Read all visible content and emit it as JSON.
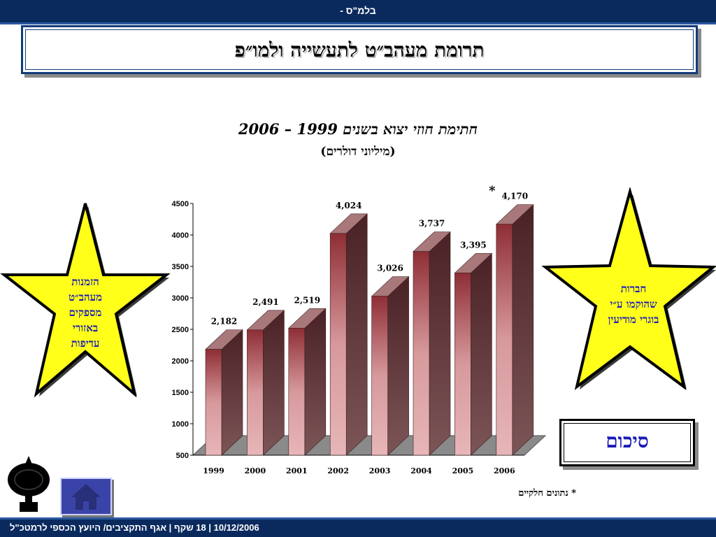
{
  "header": {
    "label": "בלמ\"ס -"
  },
  "title": "תרומת מעהב״ט לתעשייה ולמו״פ",
  "left_star": {
    "lines": [
      "הזמנות",
      "מעהב״ט",
      "מספקים",
      "באזורי",
      "עדיפות"
    ]
  },
  "right_star": {
    "lines": [
      "חברות",
      "שהוקמו ע״י",
      "בוגרי מודיעין"
    ]
  },
  "summary_button": {
    "label": "סיכום"
  },
  "footnote": "* נתונים חלקיים",
  "footer": {
    "label": "10/12/2006 | 18 שקף | אגף התקציבים/ היועץ הכספי לרמטכ\"ל"
  },
  "colors": {
    "bar_front": "#c98e90",
    "bar_side": "#5a3436",
    "bar_top": "#a9787a",
    "floor": "#8a8a8a",
    "star": "#ffff1a"
  },
  "chart_data": {
    "type": "bar",
    "title": "חתימת חוזי יצוא בשנים 1999 – 2006",
    "subtitle": "(מיליוני דולרים)",
    "categories": [
      "1999",
      "2000",
      "2001",
      "2002",
      "2003",
      "2004",
      "2005",
      "2006"
    ],
    "values": [
      2182,
      2491,
      2519,
      4024,
      3026,
      3737,
      3395,
      4170
    ],
    "value_labels": [
      "2,182",
      "2,491",
      "2,519",
      "4,024",
      "3,026",
      "3,737",
      "3,395",
      "4,170"
    ],
    "ylim": [
      500,
      4500
    ],
    "yticks": [
      "500",
      "1000",
      "1500",
      "2000",
      "2500",
      "3000",
      "3500",
      "4000",
      "4500"
    ],
    "marker": "*",
    "grid": false,
    "xlabel": "",
    "ylabel": ""
  }
}
